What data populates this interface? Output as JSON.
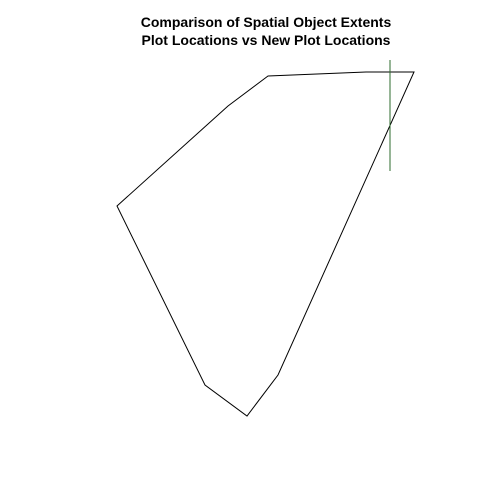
{
  "title_line1": "Comparison of Spatial Object Extents",
  "title_line2": "Plot Locations vs New Plot Locations",
  "colors": {
    "background": "#ffffff",
    "polygon_stroke": "#000000",
    "line_stroke": "#2e6b2e",
    "title": "#000000"
  }
}
